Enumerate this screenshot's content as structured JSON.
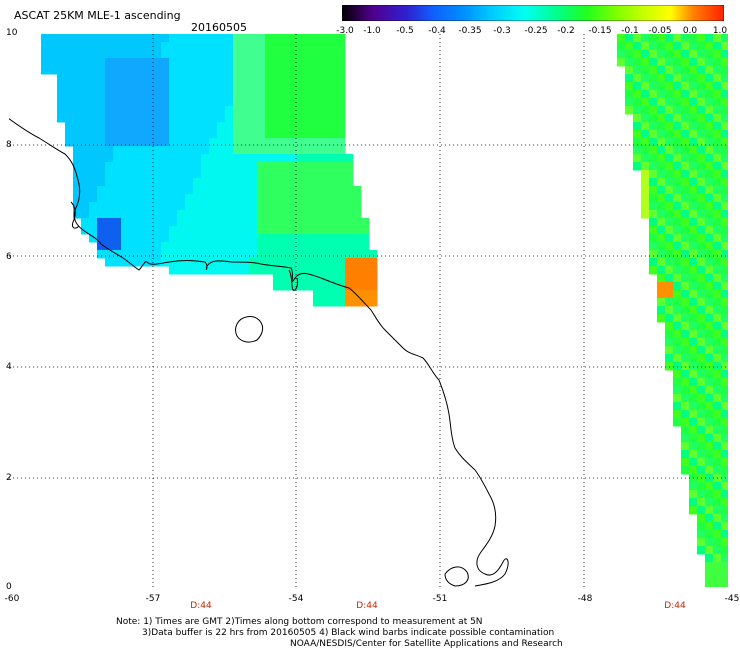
{
  "title": "ASCAT 25KM MLE-1 ascending",
  "date": "20160505",
  "colorbar": {
    "labels": [
      "-3.0",
      "-1.0",
      "-0.5",
      "-0.4",
      "-0.35",
      "-0.3",
      "-0.25",
      "-0.2",
      "-0.15",
      "-0.1",
      "-0.05",
      "0.0",
      "1.0"
    ],
    "colors": [
      "#000000",
      "#5000a0",
      "#2040e0",
      "#0090ff",
      "#00d0ff",
      "#00ffe0",
      "#00ff90",
      "#20ff20",
      "#80ff00",
      "#d0ff00",
      "#ffff00",
      "#ff8000",
      "#ff2000"
    ]
  },
  "axes": {
    "lat_labels": [
      "10",
      "8",
      "6",
      "4",
      "2",
      "0"
    ],
    "lon_labels": [
      "-60",
      "-57",
      "-54",
      "-51",
      "-48",
      "-45"
    ],
    "time_labels": [
      "D:44",
      "D:44",
      "D:44"
    ]
  },
  "notes": [
    "Note: 1) Times are GMT 2)Times along bottom correspond to measurement at 5N",
    "3)Data buffer is 22 hrs from 20160505 4) Black wind barbs indicate possible contamination",
    "NOAA/NESDIS/Center for Satellite Applications and Research"
  ],
  "colors": {
    "grid": "#000000",
    "coast": "#000000",
    "time_label": "#cc2200"
  }
}
